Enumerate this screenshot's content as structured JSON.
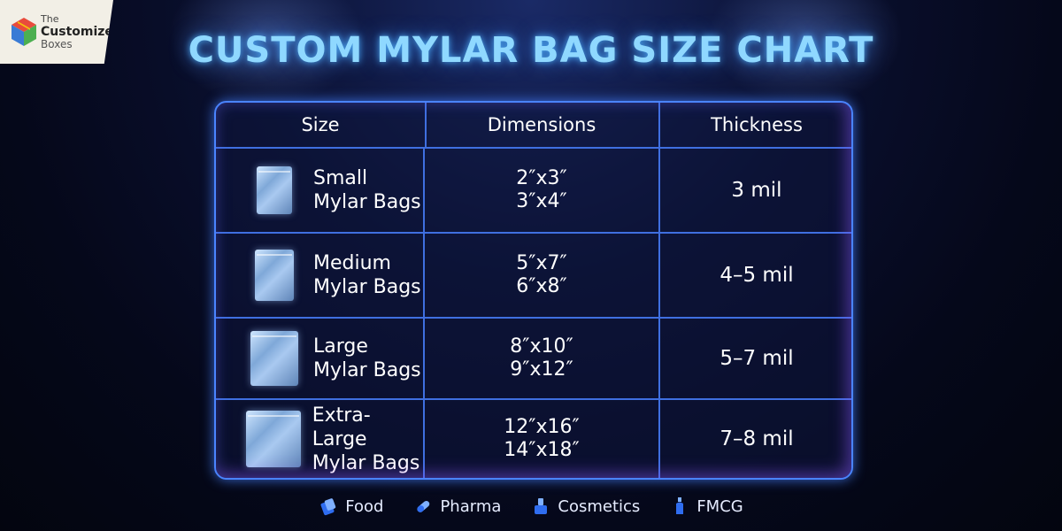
{
  "logo": {
    "line1": "The",
    "line2": "Customize",
    "line3": "Boxes"
  },
  "title": "CUSTOM MYLAR BAG SIZE CHART",
  "table": {
    "headers": [
      "Size",
      "Dimensions",
      "Thickness"
    ],
    "rows": [
      {
        "name1": "Small",
        "name2": "Mylar Bags",
        "dim1": "2″x3″",
        "dim2": "3″x4″",
        "thickness": "3 mil"
      },
      {
        "name1": "Medium",
        "name2": "Mylar Bags",
        "dim1": "5″x7″",
        "dim2": "6″x8″",
        "thickness": "4–5 mil"
      },
      {
        "name1": "Large",
        "name2": "Mylar Bags",
        "dim1": "8″x10″",
        "dim2": "9″x12″",
        "thickness": "5–7 mil"
      },
      {
        "name1": "Extra-Large",
        "name2": "Mylar Bags",
        "dim1": "12″x16″",
        "dim2": "14″x18″",
        "thickness": "7–8 mil"
      }
    ]
  },
  "footer": [
    {
      "label": "Food",
      "icon": "food-icon"
    },
    {
      "label": "Pharma",
      "icon": "pill-icon"
    },
    {
      "label": "Cosmetics",
      "icon": "cosmetics-icon"
    },
    {
      "label": "FMCG",
      "icon": "bottle-icon"
    }
  ],
  "colors": {
    "accent": "#4a84ff",
    "title_glow": "#8fd8ff",
    "background": "#05081a"
  }
}
